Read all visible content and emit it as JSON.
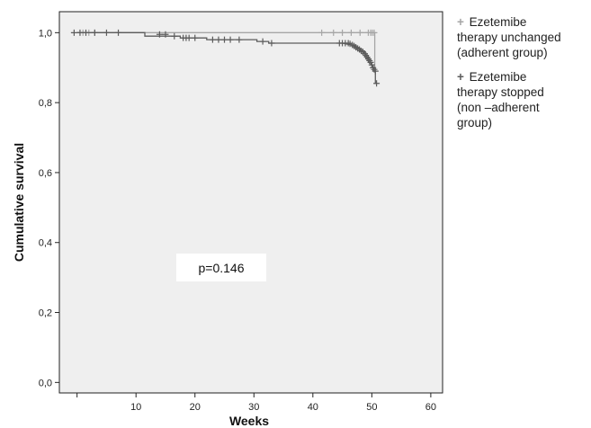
{
  "chart_data": {
    "type": "line",
    "subtype": "kaplan-meier",
    "xlabel": "Weeks",
    "ylabel": "Cumulative survival",
    "xlim": [
      -3,
      62
    ],
    "ylim": [
      -0.03,
      1.06
    ],
    "x_ticks": [
      10,
      20,
      30,
      40,
      50,
      60
    ],
    "x_tick_labels": [
      "10",
      "20",
      "30",
      "40",
      "50",
      "60"
    ],
    "y_ticks": [
      0.0,
      0.2,
      0.4,
      0.6,
      0.8,
      1.0
    ],
    "y_tick_labels": [
      "0,0",
      "0,2",
      "0,4",
      "0,6",
      "0,8",
      "1,0"
    ],
    "grid": false,
    "legend_position": "right",
    "annotation": "p=0.146",
    "colors": {
      "plot_background": "#efefef",
      "series_adherent": "#a6a6a6",
      "series_non_adherent": "#5c5c5c"
    },
    "series": [
      {
        "name": "Ezetemibe therapy unchanged (adherent group)",
        "color": "#a6a6a6",
        "steps": [
          [
            0,
            1.0
          ],
          [
            50.5,
            1.0
          ],
          [
            50.5,
            0.89
          ],
          [
            50.8,
            0.89
          ]
        ],
        "censored": [
          [
            1,
            1.0
          ],
          [
            2,
            1.0
          ],
          [
            3,
            1.0
          ],
          [
            41.5,
            1.0
          ],
          [
            43.5,
            1.0
          ],
          [
            45,
            1.0
          ],
          [
            46.5,
            1.0
          ],
          [
            48,
            1.0
          ],
          [
            49.4,
            1.0
          ],
          [
            49.8,
            1.0
          ],
          [
            50.1,
            1.0
          ],
          [
            50.4,
            1.0
          ]
        ]
      },
      {
        "name": "Ezetemibe therapy stopped (non –adherent group)",
        "color": "#5c5c5c",
        "steps": [
          [
            0,
            1.0
          ],
          [
            11.5,
            1.0
          ],
          [
            11.5,
            0.99
          ],
          [
            17.5,
            0.99
          ],
          [
            17.5,
            0.985
          ],
          [
            22,
            0.985
          ],
          [
            22,
            0.98
          ],
          [
            30.5,
            0.98
          ],
          [
            30.5,
            0.975
          ],
          [
            32.5,
            0.975
          ],
          [
            32.5,
            0.97
          ],
          [
            45,
            0.97
          ],
          [
            46.5,
            0.965
          ],
          [
            47.5,
            0.958
          ],
          [
            48.5,
            0.945
          ],
          [
            49.2,
            0.93
          ],
          [
            49.8,
            0.915
          ],
          [
            50.2,
            0.9
          ],
          [
            50.6,
            0.89
          ],
          [
            50.6,
            0.855
          ],
          [
            50.9,
            0.855
          ]
        ],
        "censored": [
          [
            -0.5,
            1.0
          ],
          [
            0.5,
            1.0
          ],
          [
            1.5,
            1.0
          ],
          [
            3,
            1.0
          ],
          [
            5,
            1.0
          ],
          [
            7,
            1.0
          ],
          [
            14,
            0.995
          ],
          [
            15,
            0.995
          ],
          [
            16.5,
            0.99
          ],
          [
            18,
            0.985
          ],
          [
            18.5,
            0.985
          ],
          [
            19,
            0.985
          ],
          [
            20,
            0.985
          ],
          [
            23,
            0.98
          ],
          [
            24,
            0.98
          ],
          [
            25,
            0.98
          ],
          [
            26,
            0.98
          ],
          [
            27.5,
            0.98
          ],
          [
            31.5,
            0.975
          ],
          [
            33,
            0.97
          ],
          [
            44.5,
            0.97
          ],
          [
            45,
            0.97
          ],
          [
            45.5,
            0.97
          ],
          [
            46,
            0.97
          ],
          [
            46.3,
            0.968
          ],
          [
            46.7,
            0.965
          ],
          [
            47.0,
            0.962
          ],
          [
            47.3,
            0.958
          ],
          [
            47.6,
            0.955
          ],
          [
            47.9,
            0.952
          ],
          [
            48.2,
            0.948
          ],
          [
            48.5,
            0.945
          ],
          [
            48.8,
            0.94
          ],
          [
            49.0,
            0.935
          ],
          [
            49.2,
            0.93
          ],
          [
            49.4,
            0.925
          ],
          [
            49.6,
            0.92
          ],
          [
            49.8,
            0.915
          ],
          [
            50.0,
            0.908
          ],
          [
            50.2,
            0.9
          ],
          [
            50.4,
            0.895
          ],
          [
            50.6,
            0.89
          ],
          [
            50.8,
            0.855
          ]
        ]
      }
    ]
  },
  "legend": {
    "items": [
      {
        "mark": "+",
        "lines": [
          "Ezetemibe",
          "therapy unchanged",
          "(adherent group)"
        ],
        "color": "#a6a6a6"
      },
      {
        "mark": "+",
        "lines": [
          "Ezetemibe",
          "therapy stopped",
          "(non –adherent",
          "group)"
        ],
        "color": "#5c5c5c"
      }
    ]
  }
}
